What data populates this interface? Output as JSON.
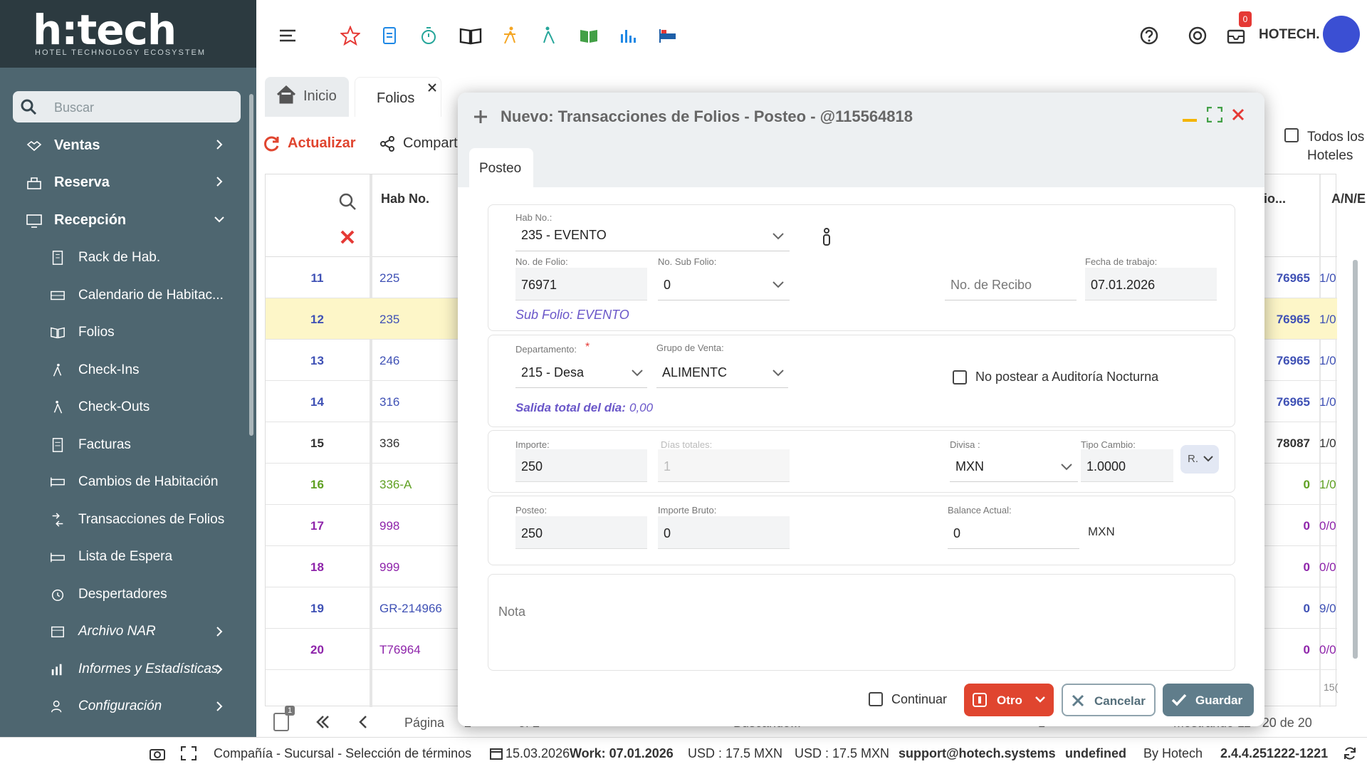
{
  "brand": {
    "logo": "h:tech",
    "tagline": "HOTEL TECHNOLOGY ECOSYSTEM"
  },
  "sidebar": {
    "search_placeholder": "Buscar",
    "sections": [
      {
        "label": "Ventas",
        "icon": "handshake-icon"
      },
      {
        "label": "Reserva",
        "icon": "bell-desk-icon"
      },
      {
        "label": "Recepción",
        "icon": "monitor-icon"
      }
    ],
    "items": [
      {
        "label": "Rack de Hab.",
        "icon": "building-icon"
      },
      {
        "label": "Calendario de Habitac...",
        "icon": "bed-calendar-icon"
      },
      {
        "label": "Folios",
        "icon": "book-open-icon"
      },
      {
        "label": "Check-Ins",
        "icon": "walk-in-icon"
      },
      {
        "label": "Check-Outs",
        "icon": "walk-out-icon"
      },
      {
        "label": "Facturas",
        "icon": "invoice-icon"
      },
      {
        "label": "Cambios de Habitación",
        "icon": "bed-change-icon"
      },
      {
        "label": "Transacciones de Folios",
        "icon": "transaction-icon"
      },
      {
        "label": "Lista de Espera",
        "icon": "bed-list-icon"
      },
      {
        "label": "Despertadores",
        "icon": "alarm-clock-icon"
      },
      {
        "label": "Archivo NAR",
        "icon": "archive-icon"
      },
      {
        "label": "Informes y Estadísticas",
        "icon": "stats-icon"
      },
      {
        "label": "Configuración",
        "icon": "user-settings-icon"
      }
    ]
  },
  "topbar": {
    "user": "HOTECH.",
    "notification_count": "0",
    "icons": [
      "menu-icon",
      "star-icon",
      "document-icon",
      "stopwatch-icon",
      "book-icon",
      "walk-in-icon",
      "walk-out-icon",
      "book-green-icon",
      "chart-icon",
      "bed-icon",
      "help-icon",
      "support-icon",
      "inbox-icon"
    ]
  },
  "tabs": {
    "home": "Inicio",
    "folios": "Folios"
  },
  "toolbar": {
    "refresh": "Actualizar",
    "share": "Compart",
    "all_hotels": "Todos los Hoteles"
  },
  "grid": {
    "header": {
      "hab": "Hab No.",
      "rcv": "io...",
      "an": "A/N/E"
    },
    "rows": [
      {
        "num": "11",
        "hab": "225",
        "rcv": "76965",
        "an": "1/0",
        "color": "#3f51b5"
      },
      {
        "num": "12",
        "hab": "235",
        "rcv": "76965",
        "an": "1/0",
        "color": "#3f51b5"
      },
      {
        "num": "13",
        "hab": "246",
        "rcv": "76965",
        "an": "1/0",
        "color": "#3f51b5"
      },
      {
        "num": "14",
        "hab": "316",
        "rcv": "76965",
        "an": "1/0",
        "color": "#3f51b5"
      },
      {
        "num": "15",
        "hab": "336",
        "rcv": "78087",
        "an": "1/0",
        "color": "#333333"
      },
      {
        "num": "16",
        "hab": "336-A",
        "rcv": "0",
        "an": "1/0",
        "color": "#5fa022"
      },
      {
        "num": "17",
        "hab": "998",
        "rcv": "0",
        "an": "0/0",
        "color": "#8e24aa"
      },
      {
        "num": "18",
        "hab": "999",
        "rcv": "0",
        "an": "0/0",
        "color": "#8e24aa"
      },
      {
        "num": "19",
        "hab": "GR-214966",
        "rcv": "0",
        "an": "9/0",
        "color": "#3f51b5"
      },
      {
        "num": "20",
        "hab": "T76964",
        "rcv": "0",
        "an": "0/0",
        "color": "#8e24aa"
      }
    ],
    "partial": "15("
  },
  "pager": {
    "label": "Página",
    "page": "2",
    "of": "of 2",
    "status": "Buscando...",
    "showing": "Mostrando 11 - 20 de 20",
    "badge": "1",
    "current": "1"
  },
  "dialog": {
    "title": "Nuevo: Transacciones de Folios - Posteo - @115564818",
    "tab": "Posteo",
    "hab_label": "Hab No.:",
    "hab_value": "235 - EVENTO",
    "folio_label": "No. de Folio:",
    "folio_value": "76971",
    "subfolio_label": "No. Sub Folio:",
    "subfolio_value": "0",
    "recibo_placeholder": "No. de Recibo",
    "fecha_label": "Fecha de trabajo:",
    "fecha_value": "07.01.2026",
    "subfolio_note": "Sub Folio: EVENTO",
    "dept_label": "Departamento:",
    "dept_required": "*",
    "dept_value": "215 - Desa",
    "grupo_label": "Grupo de Venta:",
    "grupo_value": "ALIMENTC",
    "no_postear": "No postear a Auditoría Nocturna",
    "salida_label": "Salida total del día:",
    "salida_value": "0,00",
    "importe_label": "Importe:",
    "importe_value": "250",
    "dias_label": "Días totales:",
    "dias_value": "1",
    "divisa_label": "Divisa :",
    "divisa_value": "MXN",
    "tipo_label": "Tipo Cambio:",
    "tipo_value": "1.0000",
    "r_btn": "R.",
    "posteo_label": "Posteo:",
    "posteo_value": "250",
    "bruto_label": "Importe Bruto:",
    "bruto_value": "0",
    "balance_label": "Balance Actual:",
    "balance_value": "0",
    "balance_currency": "MXN",
    "nota_placeholder": "Nota",
    "continuar": "Continuar",
    "otro": "Otro",
    "cancelar": "Cancelar",
    "guardar": "Guardar"
  },
  "statusbar": {
    "company": "Compañía - Sucursal - Selección de términos",
    "date": "15.03.2026",
    "work": "Work: 07.01.2026",
    "usd1": "USD : 17.5 MXN",
    "usd2": "USD : 17.5 MXN",
    "email": "support@hotech.systems",
    "undefined": "undefined",
    "by": "By Hotech",
    "version": "2.4.4.251222-1221"
  },
  "colors": {
    "sidebar": "#4e6670",
    "accent_red": "#e0452f",
    "save_btn": "#607d8b",
    "purple": "#6a57c9"
  }
}
